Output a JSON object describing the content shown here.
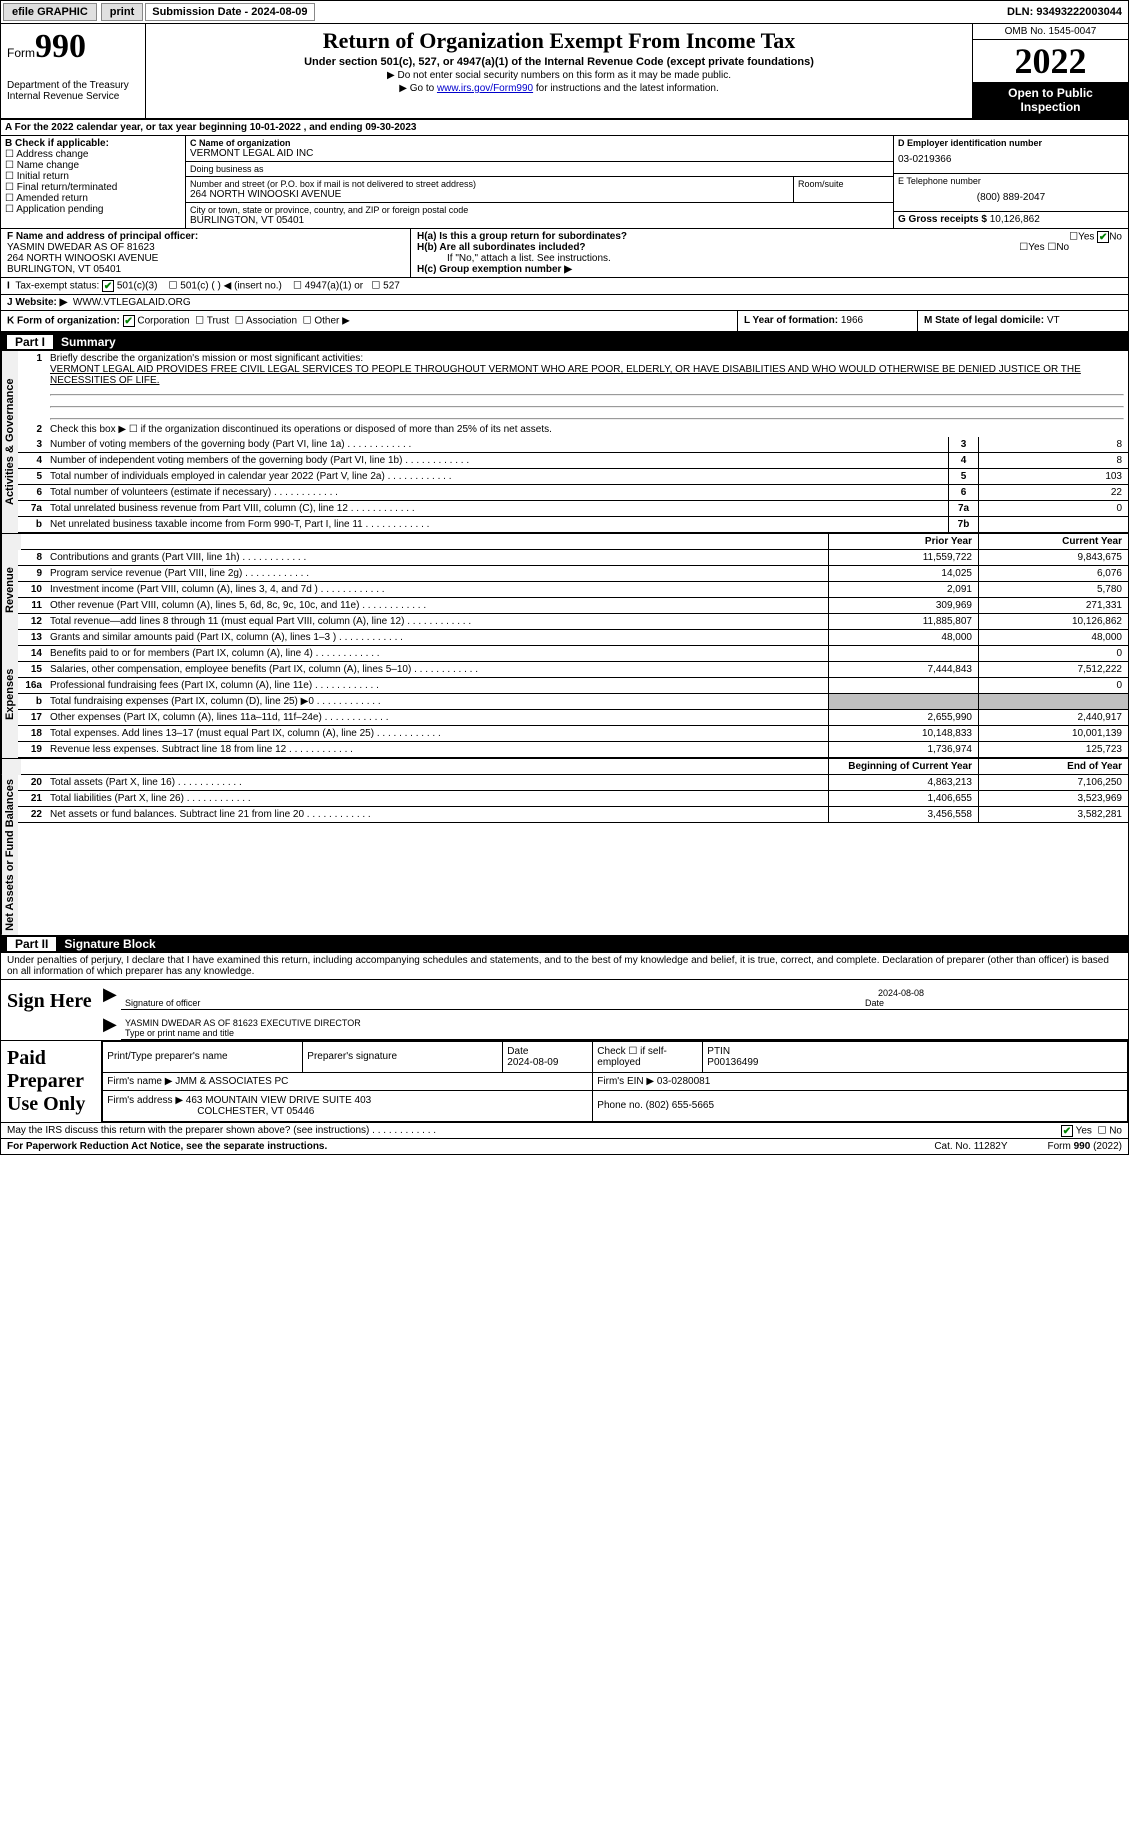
{
  "topbar": {
    "efile": "efile GRAPHIC",
    "print": "print",
    "submission": "Submission Date - 2024-08-09",
    "dln": "DLN: 93493222003044"
  },
  "header": {
    "form_label": "Form",
    "form_no": "990",
    "dept": "Department of the Treasury\nInternal Revenue Service",
    "title": "Return of Organization Exempt From Income Tax",
    "subtitle": "Under section 501(c), 527, or 4947(a)(1) of the Internal Revenue Code (except private foundations)",
    "note1": "▶ Do not enter social security numbers on this form as it may be made public.",
    "note2_pre": "▶ Go to ",
    "note2_link": "www.irs.gov/Form990",
    "note2_post": " for instructions and the latest information.",
    "omb": "OMB No. 1545-0047",
    "year": "2022",
    "badge": "Open to Public Inspection"
  },
  "lineA": "A For the 2022 calendar year, or tax year beginning 10-01-2022    , and ending 09-30-2023",
  "checkB": {
    "label": "B Check if applicable:",
    "items": [
      "Address change",
      "Name change",
      "Initial return",
      "Final return/terminated",
      "Amended return",
      "Application pending"
    ]
  },
  "blockC": {
    "name_lbl": "C Name of organization",
    "name": "VERMONT LEGAL AID INC",
    "dba_lbl": "Doing business as",
    "dba": "",
    "addr_lbl": "Number and street (or P.O. box if mail is not delivered to street address)",
    "addr": "264 NORTH WINOOSKI AVENUE",
    "room_lbl": "Room/suite",
    "city_lbl": "City or town, state or province, country, and ZIP or foreign postal code",
    "city": "BURLINGTON, VT  05401"
  },
  "blockD": {
    "lbl": "D Employer identification number",
    "val": "03-0219366"
  },
  "blockE": {
    "lbl": "E Telephone number",
    "val": "(800) 889-2047"
  },
  "blockG": {
    "lbl": "G Gross receipts $",
    "val": "10,126,862"
  },
  "blockF": {
    "lbl": "F Name and address of principal officer:",
    "name": "YASMIN DWEDAR AS OF 81623",
    "addr1": "264 NORTH WINOOSKI AVENUE",
    "addr2": "BURLINGTON, VT  05401"
  },
  "blockH": {
    "a": "H(a)  Is this a group return for subordinates?",
    "b": "H(b)  Are all subordinates included?",
    "b_note": "If \"No,\" attach a list. See instructions.",
    "c": "H(c)  Group exemption number ▶",
    "yes": "Yes",
    "no": "No"
  },
  "lineI": {
    "lbl": "Tax-exempt status:",
    "opts": [
      "501(c)(3)",
      "501(c) (   ) ◀ (insert no.)",
      "4947(a)(1) or",
      "527"
    ]
  },
  "lineJ": {
    "lbl": "J  Website: ▶",
    "val": "WWW.VTLEGALAID.ORG"
  },
  "lineK": {
    "lbl": "K Form of organization:",
    "opts": [
      "Corporation",
      "Trust",
      "Association",
      "Other ▶"
    ]
  },
  "lineL": {
    "lbl": "L Year of formation:",
    "val": "1966"
  },
  "lineM": {
    "lbl": "M State of legal domicile:",
    "val": "VT"
  },
  "part1": {
    "num": "Part I",
    "title": "Summary"
  },
  "summary": {
    "l1_lbl": "Briefly describe the organization's mission or most significant activities:",
    "l1_txt": "VERMONT LEGAL AID PROVIDES FREE CIVIL LEGAL SERVICES TO PEOPLE THROUGHOUT VERMONT WHO ARE POOR, ELDERLY, OR HAVE DISABILITIES AND WHO WOULD OTHERWISE BE DENIED JUSTICE OR THE NECESSITIES OF LIFE.",
    "l2": "Check this box ▶ ☐ if the organization discontinued its operations or disposed of more than 25% of its net assets.",
    "rows_ag": [
      {
        "n": "3",
        "t": "Number of voting members of the governing body (Part VI, line 1a)",
        "b": "3",
        "v": "8"
      },
      {
        "n": "4",
        "t": "Number of independent voting members of the governing body (Part VI, line 1b)",
        "b": "4",
        "v": "8"
      },
      {
        "n": "5",
        "t": "Total number of individuals employed in calendar year 2022 (Part V, line 2a)",
        "b": "5",
        "v": "103"
      },
      {
        "n": "6",
        "t": "Total number of volunteers (estimate if necessary)",
        "b": "6",
        "v": "22"
      },
      {
        "n": "7a",
        "t": "Total unrelated business revenue from Part VIII, column (C), line 12",
        "b": "7a",
        "v": "0"
      },
      {
        "n": "b",
        "t": "Net unrelated business taxable income from Form 990-T, Part I, line 11",
        "b": "7b",
        "v": ""
      }
    ],
    "col_prior": "Prior Year",
    "col_curr": "Current Year",
    "rows_rev": [
      {
        "n": "8",
        "t": "Contributions and grants (Part VIII, line 1h)",
        "p": "11,559,722",
        "c": "9,843,675"
      },
      {
        "n": "9",
        "t": "Program service revenue (Part VIII, line 2g)",
        "p": "14,025",
        "c": "6,076"
      },
      {
        "n": "10",
        "t": "Investment income (Part VIII, column (A), lines 3, 4, and 7d )",
        "p": "2,091",
        "c": "5,780"
      },
      {
        "n": "11",
        "t": "Other revenue (Part VIII, column (A), lines 5, 6d, 8c, 9c, 10c, and 11e)",
        "p": "309,969",
        "c": "271,331"
      },
      {
        "n": "12",
        "t": "Total revenue—add lines 8 through 11 (must equal Part VIII, column (A), line 12)",
        "p": "11,885,807",
        "c": "10,126,862"
      }
    ],
    "rows_exp": [
      {
        "n": "13",
        "t": "Grants and similar amounts paid (Part IX, column (A), lines 1–3 )",
        "p": "48,000",
        "c": "48,000"
      },
      {
        "n": "14",
        "t": "Benefits paid to or for members (Part IX, column (A), line 4)",
        "p": "",
        "c": "0"
      },
      {
        "n": "15",
        "t": "Salaries, other compensation, employee benefits (Part IX, column (A), lines 5–10)",
        "p": "7,444,843",
        "c": "7,512,222"
      },
      {
        "n": "16a",
        "t": "Professional fundraising fees (Part IX, column (A), line 11e)",
        "p": "",
        "c": "0"
      },
      {
        "n": "b",
        "t": "Total fundraising expenses (Part IX, column (D), line 25) ▶0",
        "p": "grey",
        "c": "grey"
      },
      {
        "n": "17",
        "t": "Other expenses (Part IX, column (A), lines 11a–11d, 11f–24e)",
        "p": "2,655,990",
        "c": "2,440,917"
      },
      {
        "n": "18",
        "t": "Total expenses. Add lines 13–17 (must equal Part IX, column (A), line 25)",
        "p": "10,148,833",
        "c": "10,001,139"
      },
      {
        "n": "19",
        "t": "Revenue less expenses. Subtract line 18 from line 12",
        "p": "1,736,974",
        "c": "125,723"
      }
    ],
    "col_beg": "Beginning of Current Year",
    "col_end": "End of Year",
    "rows_net": [
      {
        "n": "20",
        "t": "Total assets (Part X, line 16)",
        "p": "4,863,213",
        "c": "7,106,250"
      },
      {
        "n": "21",
        "t": "Total liabilities (Part X, line 26)",
        "p": "1,406,655",
        "c": "3,523,969"
      },
      {
        "n": "22",
        "t": "Net assets or fund balances. Subtract line 21 from line 20",
        "p": "3,456,558",
        "c": "3,582,281"
      }
    ],
    "tab_ag": "Activities & Governance",
    "tab_rev": "Revenue",
    "tab_exp": "Expenses",
    "tab_net": "Net Assets or Fund Balances"
  },
  "part2": {
    "num": "Part II",
    "title": "Signature Block"
  },
  "perjury": "Under penalties of perjury, I declare that I have examined this return, including accompanying schedules and statements, and to the best of my knowledge and belief, it is true, correct, and complete. Declaration of preparer (other than officer) is based on all information of which preparer has any knowledge.",
  "sign": {
    "here": "Sign Here",
    "sig_lbl": "Signature of officer",
    "date_lbl": "Date",
    "date": "2024-08-08",
    "name": "YASMIN DWEDAR AS OF 81623  EXECUTIVE DIRECTOR",
    "name_lbl": "Type or print name and title"
  },
  "prep": {
    "lab": "Paid Preparer Use Only",
    "h_name": "Print/Type preparer's name",
    "h_sig": "Preparer's signature",
    "h_date": "Date",
    "date": "2024-08-09",
    "h_chk": "Check ☐ if self-employed",
    "h_ptin": "PTIN",
    "ptin": "P00136499",
    "firm_lbl": "Firm's name    ▶",
    "firm": "JMM & ASSOCIATES PC",
    "ein_lbl": "Firm's EIN ▶",
    "ein": "03-0280081",
    "addr_lbl": "Firm's address ▶",
    "addr": "463 MOUNTAIN VIEW DRIVE SUITE 403",
    "addr2": "COLCHESTER, VT  05446",
    "phone_lbl": "Phone no.",
    "phone": "(802) 655-5665"
  },
  "may": {
    "txt": "May the IRS discuss this return with the preparer shown above? (see instructions)",
    "yes": "Yes",
    "no": "No"
  },
  "footer": {
    "pra": "For Paperwork Reduction Act Notice, see the separate instructions.",
    "cat": "Cat. No. 11282Y",
    "form": "Form 990 (2022)"
  }
}
